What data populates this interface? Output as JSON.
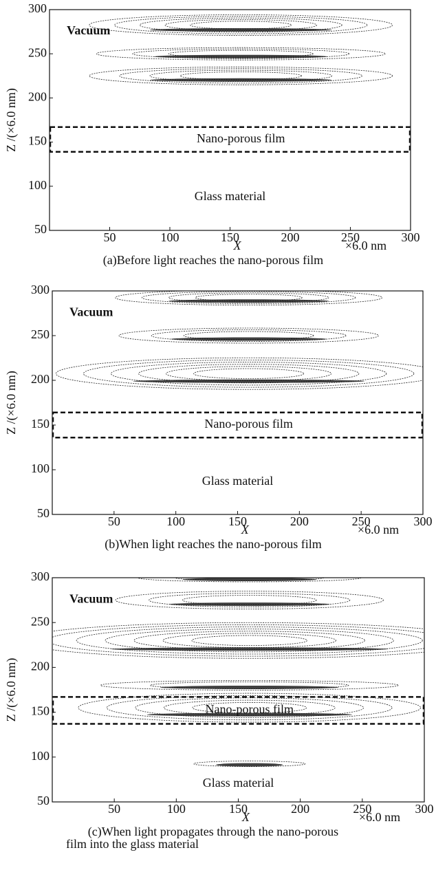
{
  "chart_data": [
    {
      "type": "contour",
      "ylabel": "Z /(×6.0 nm)",
      "xlabel": "X",
      "x_unit": "×6.0 nm",
      "caption": [
        "(a)Before light reaches the nano-porous film"
      ],
      "annotations": [
        "Vacuum",
        "Nano-porous film",
        "Glass material"
      ],
      "film_region": [
        139,
        167
      ],
      "xlim": [
        0,
        300
      ],
      "ylim": [
        50,
        300
      ],
      "xticks": [
        50,
        100,
        150,
        200,
        250,
        300
      ],
      "yticks": [
        50,
        100,
        150,
        200,
        250,
        300
      ]
    },
    {
      "type": "contour",
      "ylabel": "Z /(×6.0 nm)",
      "xlabel": "X",
      "x_unit": "×6.0 nm",
      "caption": [
        "(b)When light reaches the nano-porous film"
      ],
      "annotations": [
        "Vacuum",
        "Nano-porous film",
        "Glass material"
      ],
      "film_region": [
        136,
        164
      ],
      "xlim": [
        0,
        300
      ],
      "ylim": [
        50,
        300
      ],
      "xticks": [
        50,
        100,
        150,
        200,
        250,
        300
      ],
      "yticks": [
        50,
        100,
        150,
        200,
        250,
        300
      ]
    },
    {
      "type": "contour",
      "ylabel": "Z /(×6.0 nm)",
      "xlabel": "X",
      "x_unit": "×6.0 nm",
      "caption": [
        "(c)When light propagates through the nano-porous",
        "film into the glass material"
      ],
      "annotations": [
        "Vacuum",
        "Nano-porous film",
        "Glass material"
      ],
      "film_region": [
        137,
        167
      ],
      "xlim": [
        0,
        300
      ],
      "ylim": [
        50,
        300
      ],
      "xticks": [
        50,
        100,
        150,
        200,
        250,
        300
      ],
      "yticks": [
        50,
        100,
        150,
        200,
        250,
        300
      ]
    }
  ]
}
